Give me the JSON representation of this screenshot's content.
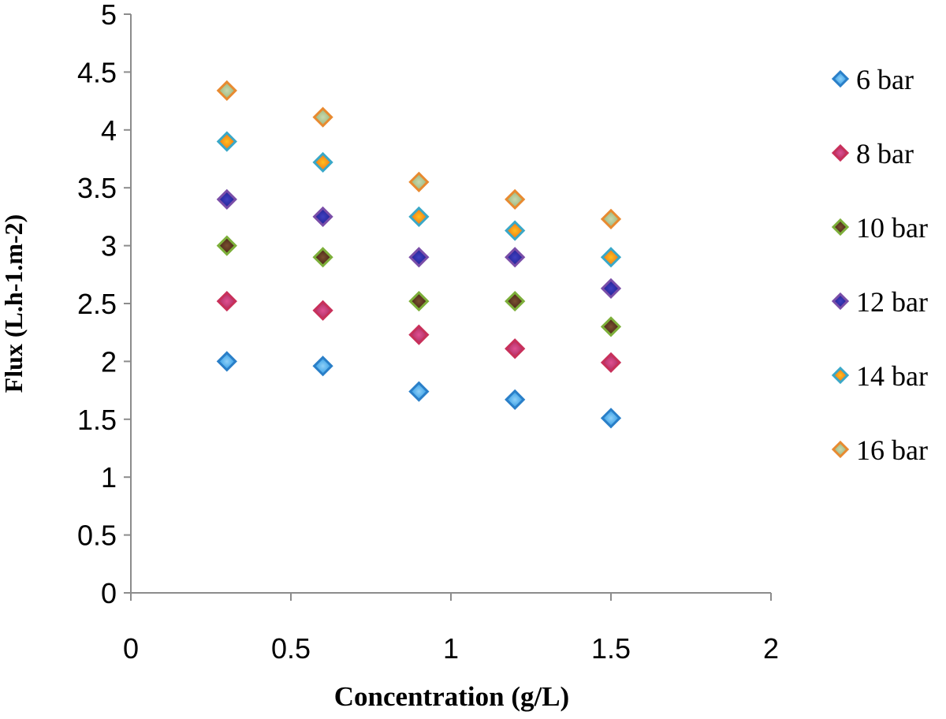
{
  "chart_data": {
    "type": "scatter",
    "title": "",
    "xlabel": "Concentration (g/L)",
    "ylabel": "Flux (L.h-1.m-2)",
    "xlim": [
      0,
      2
    ],
    "ylim": [
      0,
      5
    ],
    "x_ticks": [
      "0",
      "0.5",
      "1",
      "1.5",
      "2"
    ],
    "y_ticks": [
      "0",
      "0.5",
      "1",
      "1.5",
      "2",
      "2.5",
      "3",
      "3.5",
      "4",
      "4.5",
      "5"
    ],
    "grid": false,
    "legend_position": "right",
    "marker": "diamond",
    "x": [
      0.3,
      0.6,
      0.9,
      1.2,
      1.5
    ],
    "series": [
      {
        "name": " 6 bar",
        "values": [
          2.0,
          1.96,
          1.74,
          1.67,
          1.51
        ],
        "fill": "#1E90E0",
        "light": "#8FD0F8",
        "edge": "#2A7FC8"
      },
      {
        "name": "8 bar",
        "values": [
          2.52,
          2.44,
          2.23,
          2.11,
          1.99
        ],
        "fill": "#A0285A",
        "light": "#E05090",
        "edge": "#C8305A"
      },
      {
        "name": "10 bar",
        "values": [
          3.0,
          2.9,
          2.52,
          2.52,
          2.3
        ],
        "fill": "#3A1A10",
        "light": "#7A5030",
        "edge": "#7DAF3A"
      },
      {
        "name": "12 bar",
        "values": [
          3.4,
          3.25,
          2.9,
          2.9,
          2.63
        ],
        "fill": "#1A1A8A",
        "light": "#4040C0",
        "edge": "#7A4EA8"
      },
      {
        "name": "14 bar",
        "values": [
          3.9,
          3.72,
          3.25,
          3.13,
          2.9
        ],
        "fill": "#F06010",
        "light": "#FFC020",
        "edge": "#3AA8C8"
      },
      {
        "name": "16 bar",
        "values": [
          4.34,
          4.11,
          3.55,
          3.4,
          3.23
        ],
        "fill": "#8FB070",
        "light": "#C8D8B0",
        "edge": "#E88A30"
      }
    ]
  }
}
